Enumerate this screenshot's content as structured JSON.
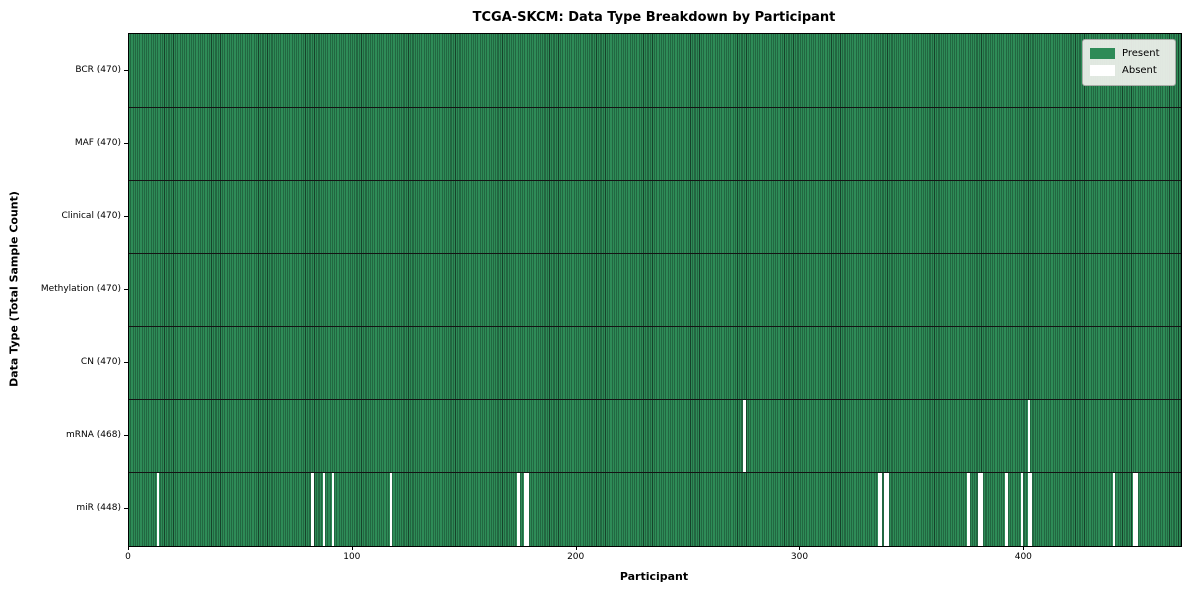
{
  "title": "TCGA-SKCM: Data Type Breakdown by Participant",
  "axes": {
    "xlabel": "Participant",
    "ylabel": "Data Type (Total Sample Count)"
  },
  "legend": {
    "present_label": "Present",
    "absent_label": "Absent"
  },
  "colors": {
    "present": "#2e8b57",
    "present_edge": "#16432b",
    "absent": "#ffffff"
  },
  "chart_data": {
    "type": "heatmap",
    "title": "TCGA-SKCM: Data Type Breakdown by Participant",
    "xlabel": "Participant",
    "ylabel": "Data Type (Total Sample Count)",
    "x_range": [
      0,
      470
    ],
    "x_ticks": [
      0,
      100,
      200,
      300,
      400
    ],
    "grid": false,
    "legend_position": "upper right",
    "legend_entries": [
      "Present",
      "Absent"
    ],
    "total_participants": 470,
    "rows": [
      {
        "label": "BCR (470)",
        "data_type": "BCR",
        "sample_count": 470,
        "absent_participants": []
      },
      {
        "label": "MAF (470)",
        "data_type": "MAF",
        "sample_count": 470,
        "absent_participants": []
      },
      {
        "label": "Clinical (470)",
        "data_type": "Clinical",
        "sample_count": 470,
        "absent_participants": []
      },
      {
        "label": "Methylation (470)",
        "data_type": "Methylation",
        "sample_count": 470,
        "absent_participants": []
      },
      {
        "label": "CN (470)",
        "data_type": "CN",
        "sample_count": 470,
        "absent_participants": []
      },
      {
        "label": "mRNA (468)",
        "data_type": "mRNA",
        "sample_count": 468,
        "absent_participants": [
          275,
          402
        ]
      },
      {
        "label": "miR (448)",
        "data_type": "miR",
        "sample_count": 448,
        "absent_participants": [
          13,
          82,
          87,
          91,
          117,
          174,
          177,
          178,
          335,
          336,
          338,
          339,
          375,
          380,
          381,
          392,
          399,
          402,
          403,
          440,
          449,
          450
        ]
      }
    ]
  }
}
